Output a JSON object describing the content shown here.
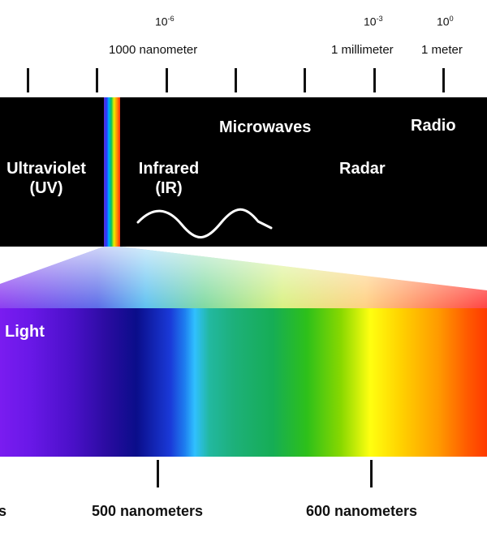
{
  "scale": {
    "markers": [
      {
        "exponent": "-6",
        "label": "1000 nanometer"
      },
      {
        "exponent": "-3",
        "label": "1 millimeter"
      },
      {
        "exponent": "0",
        "label": "1 meter"
      }
    ],
    "power_base": "10"
  },
  "bands": {
    "ultraviolet": {
      "line1": "Ultraviolet",
      "line2": "(UV)"
    },
    "infrared": {
      "line1": "Infrared",
      "line2": "(IR)"
    },
    "microwaves": "Microwaves",
    "radar": "Radar",
    "radio": "Radio"
  },
  "visible": {
    "label": "Light"
  },
  "bottom_scale": {
    "left_fragment": "s",
    "labels": [
      "500 nanometers",
      "600 nanometers"
    ]
  },
  "colors": {
    "band_background": "#000000",
    "text_on_dark": "#ffffff",
    "wave": "#ffffff"
  }
}
